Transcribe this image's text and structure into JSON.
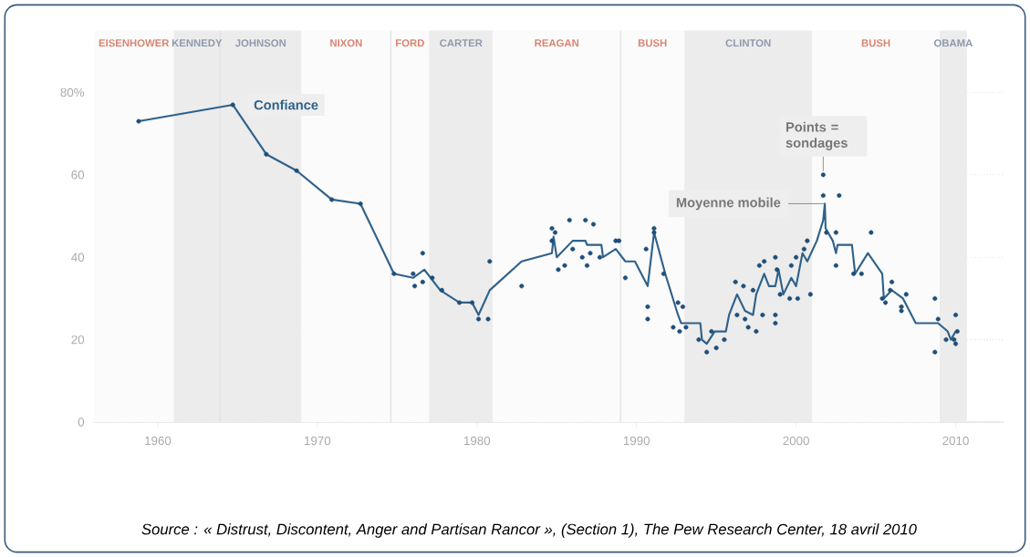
{
  "chart_data": {
    "type": "scatter",
    "xlim": [
      1956,
      2013
    ],
    "ylim": [
      0,
      95
    ],
    "xticks": [
      1960,
      1970,
      1980,
      1990,
      2000,
      2010
    ],
    "yticks": [
      0,
      20,
      40,
      60,
      {
        "value": 80,
        "label": "80%"
      }
    ],
    "grid": "y",
    "series": [
      {
        "name": "Confiance",
        "type": "line",
        "color": "#2f6189",
        "x": [
          1958.8,
          1964.7,
          1966.8,
          1968.7,
          1970.9,
          1972.7,
          1974.8,
          1976.0,
          1976.7,
          1977.7,
          1978.9,
          1979.7,
          1980.1,
          1980.8,
          1982.8,
          1984.7,
          1984.8,
          1985.0,
          1986.0,
          1986.8,
          1986.9,
          1987.8,
          1987.9,
          1988.7,
          1989.3,
          1989.9,
          1990.7,
          1991.1,
          1991.8,
          1992.6,
          1992.8,
          1994.0,
          1994.1,
          1994.4,
          1994.9,
          1995.6,
          1995.8,
          1996.3,
          1996.8,
          1997.3,
          1997.5,
          1998.0,
          1998.3,
          1998.7,
          1998.9,
          1999.2,
          1999.7,
          2000.0,
          2000.4,
          2000.7,
          2001.3,
          2001.7,
          2001.8,
          2001.85,
          2002.3,
          2002.5,
          2002.6,
          2003.5,
          2003.7,
          2004.5,
          2005.4,
          2005.5,
          2006.0,
          2006.7,
          2007.5,
          2008.9,
          2009.5,
          2009.7,
          2010.0
        ],
        "values": [
          73,
          77,
          65,
          61,
          54,
          53,
          36,
          35,
          37,
          32,
          29,
          29,
          26,
          32,
          39,
          41,
          45,
          40,
          44,
          44,
          43,
          43,
          40,
          42,
          39,
          39,
          33,
          46,
          36,
          26,
          24,
          24,
          20,
          19,
          22,
          22,
          26,
          31,
          27,
          26,
          31,
          36,
          33,
          33,
          37,
          31,
          35,
          33,
          41,
          39,
          44,
          49,
          53,
          47,
          44,
          41,
          43,
          43,
          36,
          41,
          36,
          30,
          32,
          30,
          24,
          24,
          22,
          20,
          22
        ]
      },
      {
        "marker": "circle",
        "color": "#1f4e79",
        "x": [
          1958.8,
          1964.7,
          1966.8,
          1968.7,
          1970.9,
          1972.7,
          1974.8,
          1976.6,
          1976.0,
          1976.1,
          1976.6,
          1977.2,
          1977.8,
          1978.9,
          1979.7,
          1980.1,
          1980.7,
          1980.8,
          1982.8,
          1984.7,
          1984.9,
          1984.7,
          1985.1,
          1985.5,
          1985.8,
          1986.0,
          1986.6,
          1986.8,
          1986.9,
          1987.1,
          1987.3,
          1987.7,
          1988.7,
          1988.9,
          1989.3,
          1990.6,
          1990.7,
          1990.7,
          1991.1,
          1991.1,
          1991.7,
          1992.3,
          1992.6,
          1992.9,
          1992.7,
          1993.1,
          1993.9,
          1994.4,
          1994.7,
          1995.0,
          1995.5,
          1996.2,
          1996.3,
          1996.7,
          1996.8,
          1997.0,
          1997.3,
          1997.5,
          1997.7,
          1998.0,
          1997.9,
          1998.7,
          1998.8,
          1998.7,
          1998.7,
          1999.0,
          1999.6,
          1999.7,
          2000.1,
          2000.0,
          2000.5,
          2000.7,
          2000.9,
          2001.7,
          2001.7,
          2002.7,
          2001.9,
          2002.5,
          2002.5,
          2003.6,
          2004.1,
          2004.7,
          2005.4,
          2005.6,
          2006.0,
          2005.9,
          2006.6,
          2006.6,
          2006.9,
          2008.7,
          2008.7,
          2008.9,
          2009.4,
          2009.9,
          2010.0,
          2010.0,
          2010.1
        ],
        "values": [
          73,
          77,
          65,
          61,
          54,
          53,
          36,
          41,
          36,
          33,
          34,
          35,
          32,
          29,
          29,
          25,
          25,
          39,
          33,
          47,
          46,
          44,
          37,
          38,
          49,
          42,
          40,
          49,
          38,
          41,
          48,
          40,
          44,
          44,
          35,
          42,
          28,
          25,
          47,
          46,
          36,
          23,
          29,
          28,
          22,
          23,
          20,
          17,
          22,
          18,
          20,
          34,
          26,
          33,
          25,
          23,
          32,
          22,
          38,
          39,
          26,
          40,
          37,
          26,
          24,
          31,
          30,
          38,
          30,
          40,
          42,
          44,
          31,
          60,
          55,
          55,
          46,
          46,
          38,
          36,
          36,
          46,
          30,
          29,
          34,
          32,
          28,
          27,
          31,
          30,
          17,
          25,
          20,
          20,
          19,
          26,
          22
        ]
      }
    ],
    "bands": [
      {
        "axis": "x",
        "from": 1956,
        "to": 1961,
        "label": "EISENHOWER",
        "color": "#fbfbfb"
      },
      {
        "axis": "x",
        "from": 1961,
        "to": 1963.9,
        "label": "KENNEDY",
        "color": "#ececec"
      },
      {
        "axis": "x",
        "from": 1963.9,
        "to": 1969,
        "label": "JOHNSON",
        "color": "#ececec"
      },
      {
        "axis": "x",
        "from": 1969,
        "to": 1974.6,
        "label": "NIXON",
        "color": "#fbfbfb"
      },
      {
        "axis": "x",
        "from": 1974.6,
        "to": 1977,
        "label": "FORD",
        "color": "#fbfbfb"
      },
      {
        "axis": "x",
        "from": 1977,
        "to": 1981,
        "label": "CARTER",
        "color": "#ececec"
      },
      {
        "axis": "x",
        "from": 1981,
        "to": 1989,
        "label": "REAGAN",
        "color": "#fbfbfb"
      },
      {
        "axis": "x",
        "from": 1989,
        "to": 1993,
        "label": "BUSH",
        "color": "#fbfbfb"
      },
      {
        "axis": "x",
        "from": 1993,
        "to": 2001,
        "label": "CLINTON",
        "color": "#ececec"
      },
      {
        "axis": "x",
        "from": 2001,
        "to": 2009,
        "label": "BUSH",
        "color": "#fbfbfb"
      },
      {
        "axis": "x",
        "from": 2009,
        "to": 2010.7,
        "label": "OBAMA",
        "color": "#ececec"
      }
    ],
    "ref_lines": [
      {
        "axis": "x",
        "value": 1963.9,
        "color": "#dddddd"
      },
      {
        "axis": "x",
        "value": 1974.6,
        "color": "#dddddd"
      },
      {
        "axis": "x",
        "value": 1989,
        "color": "#dddddd"
      }
    ],
    "annotations": [
      {
        "text": "Moyenne mobile",
        "x": 2001.8,
        "y": 53
      },
      {
        "text": "Points = sondages",
        "x": 2001.7,
        "y": 60
      },
      "Source : « Distrust, Discontent, Anger and Partisan Rancor », (Section 1), The Pew Research Center, 18 avril 2010"
    ]
  }
}
